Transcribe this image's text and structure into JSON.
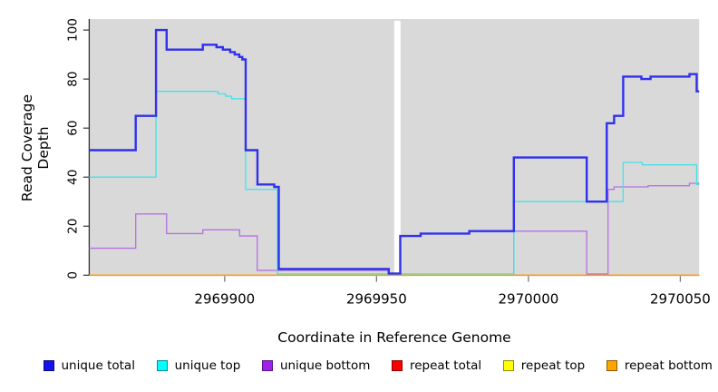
{
  "chart_data": {
    "type": "line",
    "subtype": "step-after-coverage-plot",
    "title": "",
    "xlabel": "Coordinate in Reference Genome",
    "ylabel": "Read Coverage Depth",
    "xlim": [
      2969855.4,
      2970056.2
    ],
    "ylim": [
      0,
      103
    ],
    "x_ticks": [
      2969900,
      2969950,
      2970000,
      2970050
    ],
    "y_ticks": [
      0,
      20,
      40,
      60,
      80,
      100
    ],
    "grid": "off",
    "panel_background": "#d9d9d9",
    "gap_region": {
      "from": 2969955.8,
      "to": 2969957.9
    },
    "legend_position": "bottom",
    "colors": {
      "zero_blend_green": "#8cd49c"
    },
    "series": [
      {
        "name": "unique total",
        "legend_color": "#1312eb",
        "line_color": "#3030ee",
        "line_width": 2.4,
        "points": [
          [
            2969855.4,
            51
          ],
          [
            2969870.7,
            65
          ],
          [
            2969877.4,
            100
          ],
          [
            2969880.9,
            92
          ],
          [
            2969892.8,
            94
          ],
          [
            2969897.3,
            93
          ],
          [
            2969899.4,
            92
          ],
          [
            2969901.8,
            91
          ],
          [
            2969903.3,
            90
          ],
          [
            2969904.8,
            89
          ],
          [
            2969905.8,
            88
          ],
          [
            2969906.9,
            51
          ],
          [
            2969910.8,
            37
          ],
          [
            2969916.3,
            36
          ],
          [
            2969917.8,
            2.5
          ],
          [
            2969954,
            0.7
          ],
          [
            2969957.8,
            16
          ],
          [
            2969964.5,
            17
          ],
          [
            2969980.5,
            18
          ],
          [
            2969995.2,
            48
          ],
          [
            2970019.2,
            30
          ],
          [
            2970025.8,
            62
          ],
          [
            2970028.2,
            65
          ],
          [
            2970031.2,
            81
          ],
          [
            2970037.2,
            80
          ],
          [
            2970040.2,
            81
          ],
          [
            2970053,
            82
          ],
          [
            2970055.4,
            75
          ]
        ]
      },
      {
        "name": "unique top",
        "legend_color": "#00ffff",
        "line_color": "#45e2ea",
        "line_width": 1.35,
        "points": [
          [
            2969855.4,
            40
          ],
          [
            2969877.4,
            75
          ],
          [
            2969897.8,
            74
          ],
          [
            2969900.3,
            73
          ],
          [
            2969902.3,
            72
          ],
          [
            2969906.9,
            35
          ],
          [
            2969917.4,
            0.5
          ],
          [
            2969995.2,
            30
          ],
          [
            2970031.2,
            46
          ],
          [
            2970037.5,
            45
          ],
          [
            2970055.4,
            37
          ]
        ]
      },
      {
        "name": "unique bottom",
        "legend_color": "#a020f0",
        "line_color": "#b573e2",
        "line_width": 1.35,
        "points": [
          [
            2969855.4,
            11
          ],
          [
            2969870.7,
            25
          ],
          [
            2969880.9,
            17
          ],
          [
            2969892.8,
            18.5
          ],
          [
            2969904.9,
            16
          ],
          [
            2969910.7,
            2
          ],
          [
            2969954,
            0.5
          ],
          [
            2969957.5,
            0
          ],
          [
            2969995.2,
            18
          ],
          [
            2970019.2,
            0.5
          ],
          [
            2970026.2,
            35
          ],
          [
            2970028.2,
            36
          ],
          [
            2970039.4,
            36.5
          ],
          [
            2970053,
            37.5
          ]
        ]
      },
      {
        "name": "repeat total",
        "legend_color": "#ff0000",
        "line_color": "#ff2222",
        "line_width": 1.2,
        "points": [
          [
            2969855.4,
            0
          ]
        ]
      },
      {
        "name": "repeat top",
        "legend_color": "#ffff00",
        "line_color": "#ffff33",
        "line_width": 1.2,
        "points": [
          [
            2969855.4,
            0
          ]
        ]
      },
      {
        "name": "repeat bottom",
        "legend_color": "#ffa500",
        "line_color": "#ff9c1b",
        "line_width": 1.7,
        "points": [
          [
            2969855.4,
            0
          ]
        ]
      }
    ]
  }
}
